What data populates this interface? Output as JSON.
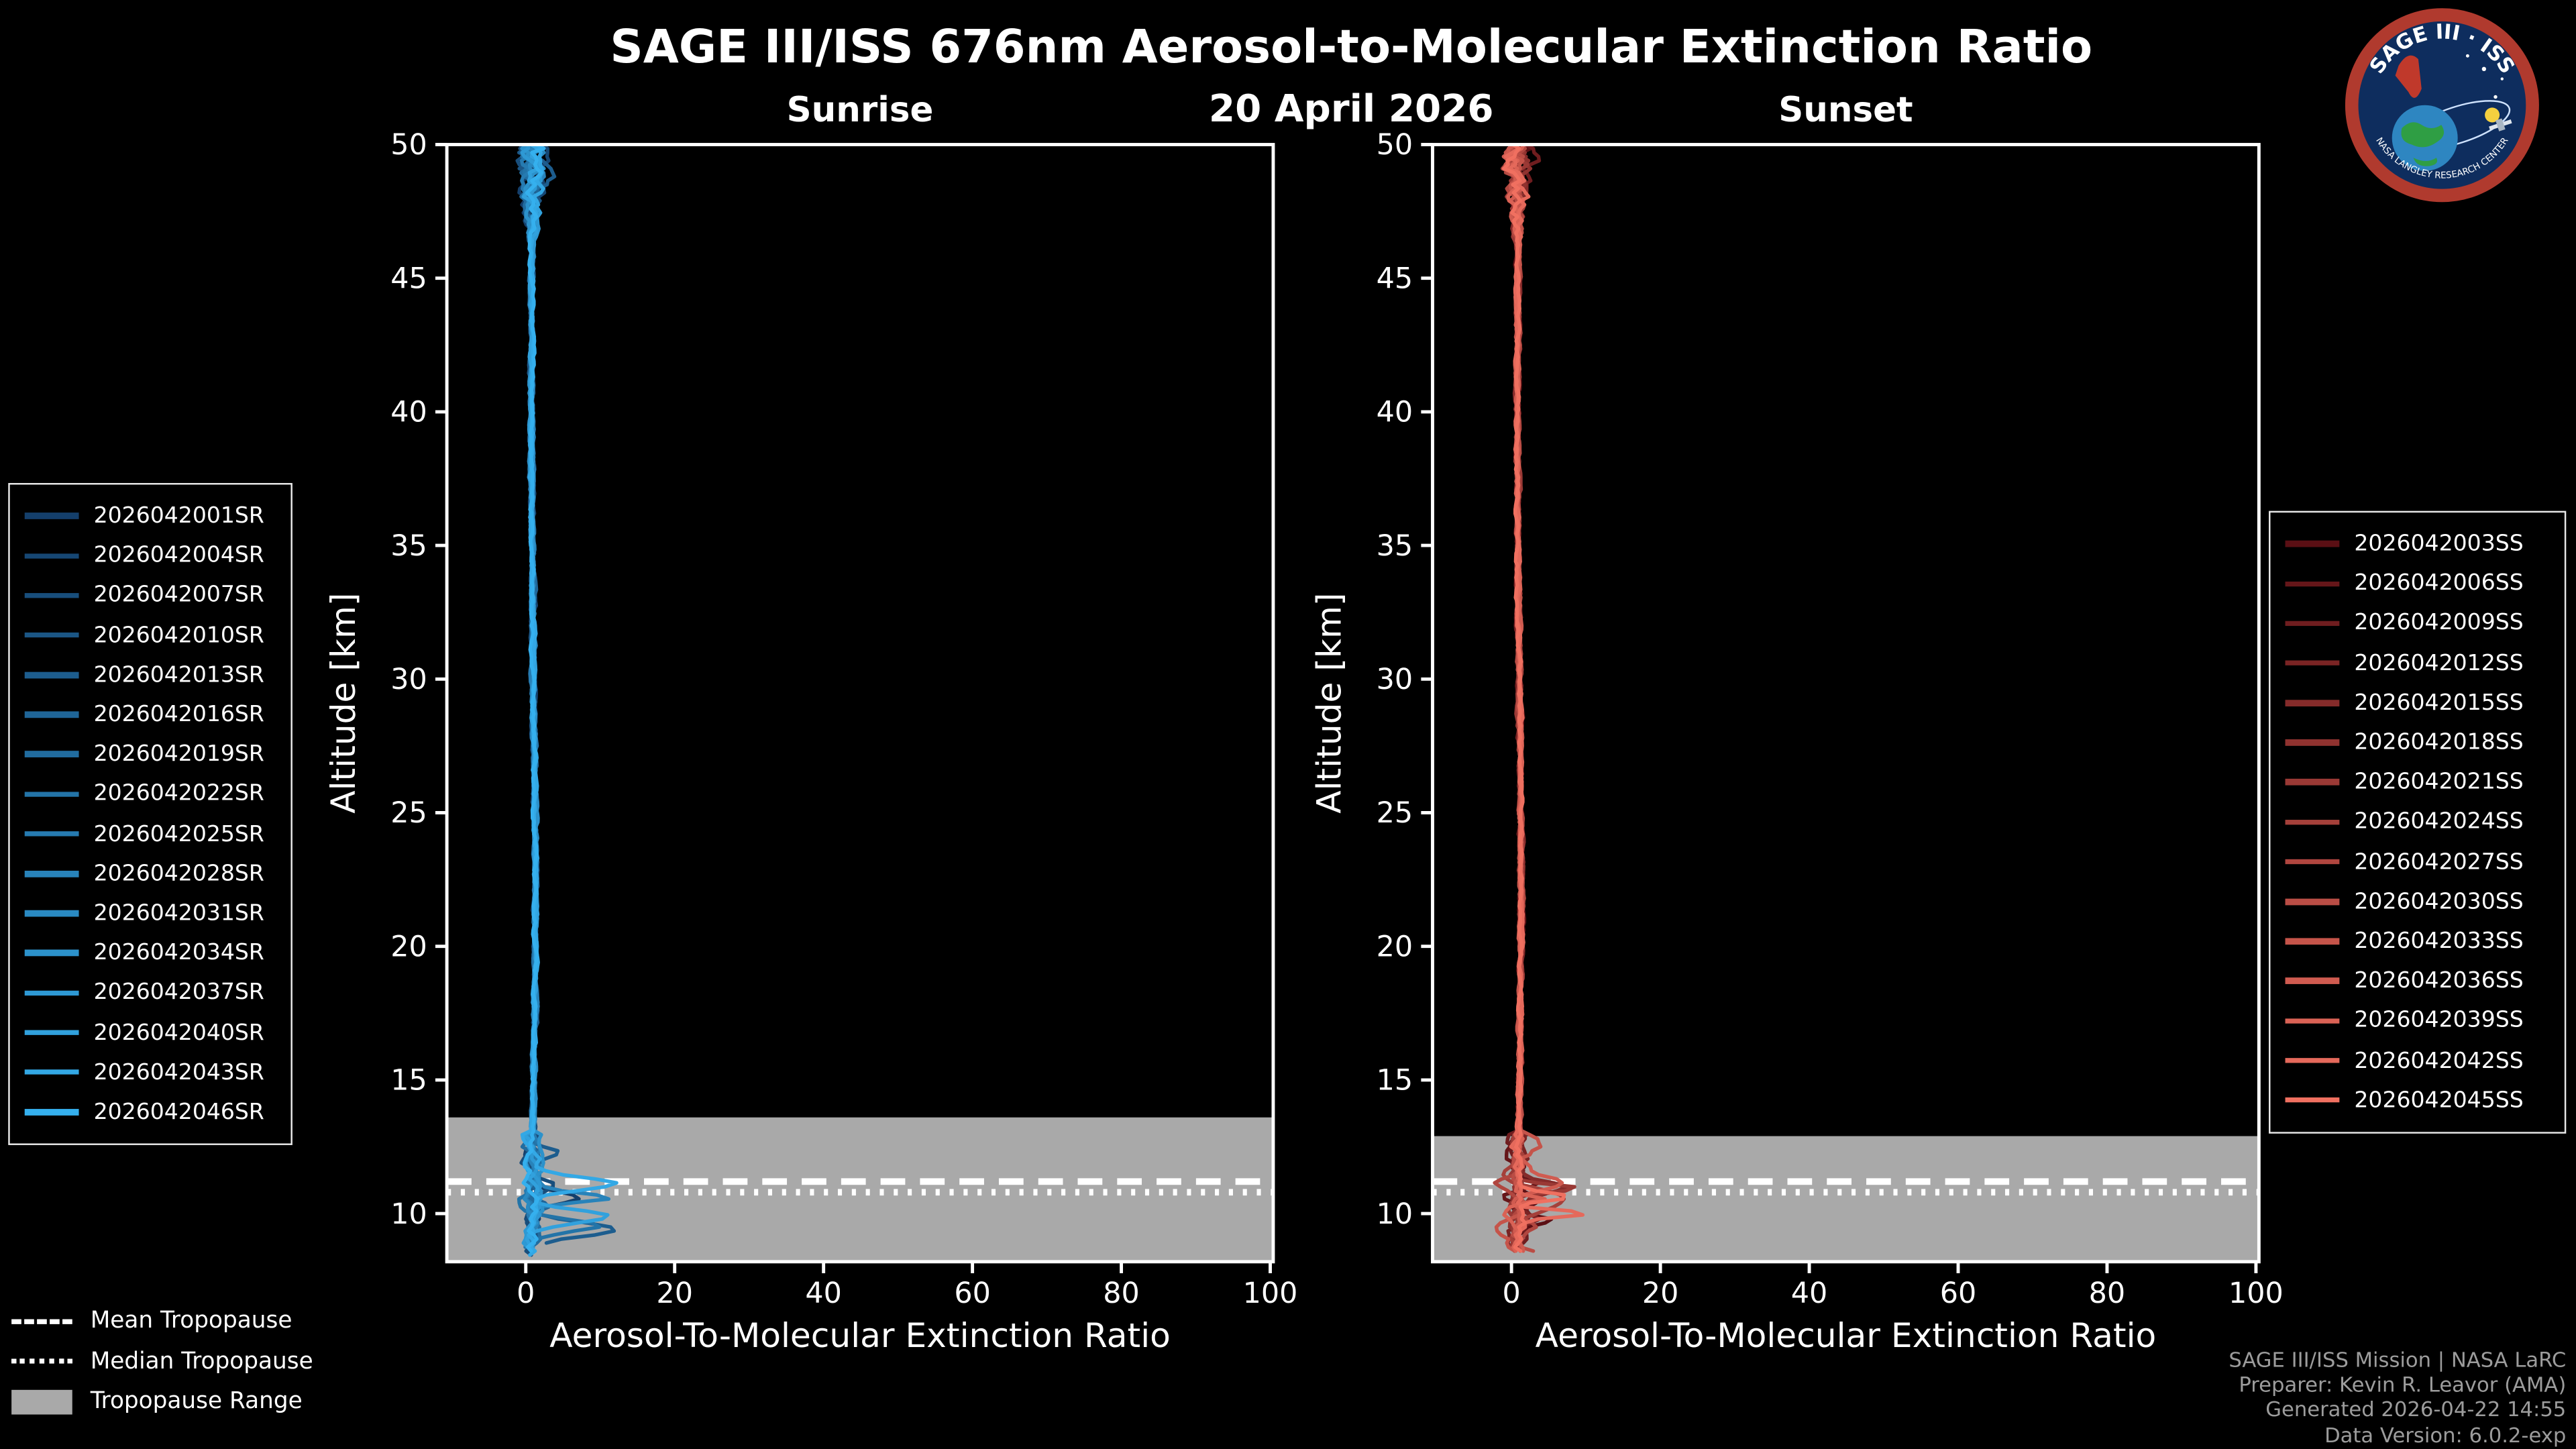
{
  "title": "SAGE III/ISS 676nm Aerosol-to-Molecular Extinction Ratio",
  "date": "20 April 2026",
  "logo": {
    "title": "SAGE III · ISS",
    "footer": "NASA LANGLEY RESEARCH CENTER"
  },
  "credits": {
    "line1": "SAGE III/ISS Mission | NASA LaRC",
    "line2": "Preparer: Kevin R. Leavor (AMA)",
    "line3": "Generated 2026-04-22 14:55",
    "line4": "Data Version: 6.0.2-exp"
  },
  "tropopause_legend": {
    "mean": "Mean Tropopause",
    "median": "Median Tropopause",
    "range": "Tropopause Range"
  },
  "colors": {
    "background": "#000000",
    "foreground": "#ffffff",
    "band": "#a9a9a9",
    "credits": "#9c9c9c",
    "logo_ring": "#b03a2e",
    "logo_field": "#0e2d5e"
  },
  "chart_data": [
    {
      "type": "line",
      "panel": "sunrise",
      "title": "Sunrise",
      "xlabel": "Aerosol-To-Molecular Extinction Ratio",
      "ylabel": "Altitude [km]",
      "xlim": [
        -10.6,
        100.4
      ],
      "ylim": [
        8.2,
        50
      ],
      "xticks": [
        0,
        20,
        40,
        60,
        80,
        100
      ],
      "yticks": [
        10,
        15,
        20,
        25,
        30,
        35,
        40,
        45,
        50
      ],
      "grid": false,
      "legend_position": "outside-left",
      "tropopause": {
        "mean_km": 11.2,
        "median_km": 10.8,
        "range_km": [
          8.2,
          13.6
        ]
      },
      "profile_model": {
        "baseline": 0.8,
        "aerosol_bump_amp": 0.5,
        "aerosol_bump_center_km": 22,
        "aerosol_bump_width_km": 9,
        "mid_noise_amp": 0.28,
        "upper_noise_start_km": 46,
        "upper_noise_amp_per_km": 0.5,
        "lower_noise_below_km": 13,
        "lower_noise_amp": 1.1,
        "spike_max_ratio": 12,
        "alt_min_km": 8.4,
        "alt_max_km": 50,
        "alt_step_km": 0.15
      },
      "series": [
        {
          "name": "2026042001SR",
          "color": "#143F6B",
          "seed": 101
        },
        {
          "name": "2026042004SR",
          "color": "#164774",
          "seed": 102
        },
        {
          "name": "2026042007SR",
          "color": "#184E7C",
          "seed": 103
        },
        {
          "name": "2026042010SR",
          "color": "#1B5685",
          "seed": 104
        },
        {
          "name": "2026042013SR",
          "color": "#1D5D8E",
          "seed": 105
        },
        {
          "name": "2026042016SR",
          "color": "#1F6597",
          "seed": 106
        },
        {
          "name": "2026042019SR",
          "color": "#216C9F",
          "seed": 107
        },
        {
          "name": "2026042022SR",
          "color": "#2374A8",
          "seed": 108
        },
        {
          "name": "2026042025SR",
          "color": "#267BB1",
          "seed": 109
        },
        {
          "name": "2026042028SR",
          "color": "#2883BA",
          "seed": 110
        },
        {
          "name": "2026042031SR",
          "color": "#2A8AC2",
          "seed": 111
        },
        {
          "name": "2026042034SR",
          "color": "#2C92CB",
          "seed": 112
        },
        {
          "name": "2026042037SR",
          "color": "#2E99D4",
          "seed": 113
        },
        {
          "name": "2026042040SR",
          "color": "#31A1DD",
          "seed": 114
        },
        {
          "name": "2026042043SR",
          "color": "#33A8E5",
          "seed": 115
        },
        {
          "name": "2026042046SR",
          "color": "#35B0EE",
          "seed": 116
        }
      ]
    },
    {
      "type": "line",
      "panel": "sunset",
      "title": "Sunset",
      "xlabel": "Aerosol-To-Molecular Extinction Ratio",
      "ylabel": "Altitude [km]",
      "xlim": [
        -10.6,
        100.4
      ],
      "ylim": [
        8.2,
        50
      ],
      "xticks": [
        0,
        20,
        40,
        60,
        80,
        100
      ],
      "yticks": [
        10,
        15,
        20,
        25,
        30,
        35,
        40,
        45,
        50
      ],
      "grid": false,
      "legend_position": "outside-right",
      "tropopause": {
        "mean_km": 11.2,
        "median_km": 10.8,
        "range_km": [
          8.2,
          12.9
        ]
      },
      "profile_model": {
        "baseline": 0.8,
        "aerosol_bump_amp": 0.5,
        "aerosol_bump_center_km": 22,
        "aerosol_bump_width_km": 9,
        "mid_noise_amp": 0.28,
        "upper_noise_start_km": 46,
        "upper_noise_amp_per_km": 0.5,
        "lower_noise_below_km": 13,
        "lower_noise_amp": 1.1,
        "spike_max_ratio": 10,
        "alt_min_km": 8.4,
        "alt_max_km": 50,
        "alt_step_km": 0.15
      },
      "series": [
        {
          "name": "2026042003SS",
          "color": "#5A0F14",
          "seed": 201
        },
        {
          "name": "2026042006SS",
          "color": "#651619",
          "seed": 202
        },
        {
          "name": "2026042009SS",
          "color": "#6F1D1F",
          "seed": 203
        },
        {
          "name": "2026042012SS",
          "color": "#7A2424",
          "seed": 204
        },
        {
          "name": "2026042015SS",
          "color": "#852B2A",
          "seed": 205
        },
        {
          "name": "2026042018SS",
          "color": "#90322F",
          "seed": 206
        },
        {
          "name": "2026042021SS",
          "color": "#9A3935",
          "seed": 207
        },
        {
          "name": "2026042024SS",
          "color": "#A5403A",
          "seed": 208
        },
        {
          "name": "2026042027SS",
          "color": "#B0463F",
          "seed": 209
        },
        {
          "name": "2026042030SS",
          "color": "#BA4D45",
          "seed": 210
        },
        {
          "name": "2026042033SS",
          "color": "#C5544A",
          "seed": 211
        },
        {
          "name": "2026042036SS",
          "color": "#D05B50",
          "seed": 212
        },
        {
          "name": "2026042039SS",
          "color": "#DA6255",
          "seed": 213
        },
        {
          "name": "2026042042SS",
          "color": "#E5695B",
          "seed": 214
        },
        {
          "name": "2026042045SS",
          "color": "#F07060",
          "seed": 215
        }
      ]
    }
  ]
}
